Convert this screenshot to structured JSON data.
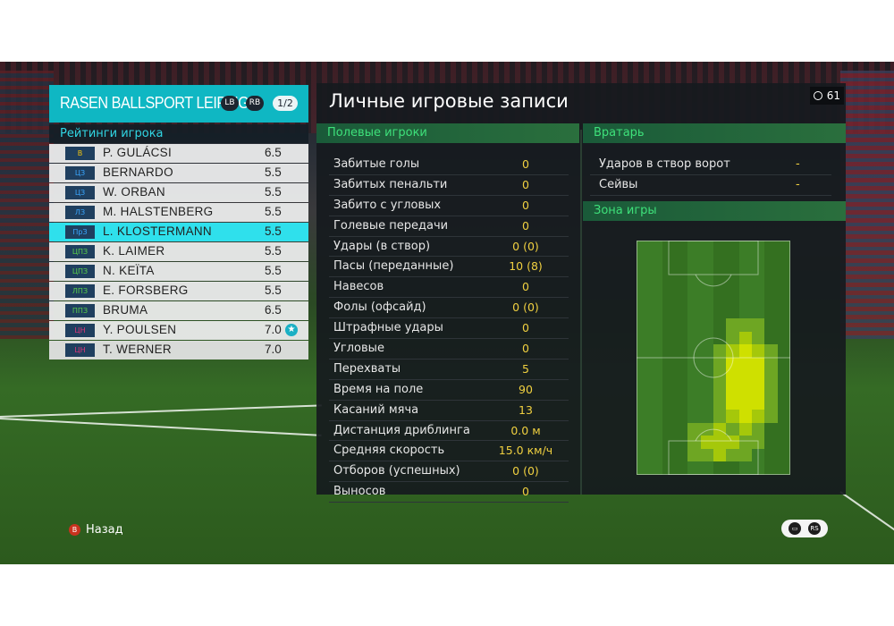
{
  "team": {
    "name": "RASEN BALLSPORT LEIPZIG",
    "lb": "LB",
    "rb": "RB",
    "page": "1/2"
  },
  "ratings_title": "Рейтинги игрока",
  "players": [
    {
      "pos": "В",
      "pos_color": "#f1c40f",
      "name": "P. GULÁCSI",
      "rating": "6.5"
    },
    {
      "pos": "ЦЗ",
      "pos_color": "#3aa7ff",
      "name": "BERNARDO",
      "rating": "5.5"
    },
    {
      "pos": "ЦЗ",
      "pos_color": "#3aa7ff",
      "name": "W. ORBAN",
      "rating": "5.5"
    },
    {
      "pos": "ЛЗ",
      "pos_color": "#3aa7ff",
      "name": "M. HALSTENBERG",
      "rating": "5.5"
    },
    {
      "pos": "ПрЗ",
      "pos_color": "#3aa7ff",
      "name": "L. KLOSTERMANN",
      "rating": "5.5"
    },
    {
      "pos": "ЦПЗ",
      "pos_color": "#5ad14a",
      "name": "K. LAIMER",
      "rating": "5.5"
    },
    {
      "pos": "ЦПЗ",
      "pos_color": "#5ad14a",
      "name": "N. KEÏTA",
      "rating": "5.5"
    },
    {
      "pos": "ЛПЗ",
      "pos_color": "#5ad14a",
      "name": "E. FORSBERG",
      "rating": "5.5"
    },
    {
      "pos": "ППЗ",
      "pos_color": "#5ad14a",
      "name": "BRUMA",
      "rating": "6.5"
    },
    {
      "pos": "ЦН",
      "pos_color": "#e0357a",
      "name": "Y. POULSEN",
      "rating": "7.0"
    },
    {
      "pos": "ЦН",
      "pos_color": "#e0357a",
      "name": "T. WERNER",
      "rating": "7.0"
    }
  ],
  "main_title": "Личные игровые записи",
  "timer": "61",
  "field_players_title": "Полевые игроки",
  "goalkeeper_title": "Вратарь",
  "zone_title": "Зона игры",
  "stats": [
    {
      "label": "Забитые голы",
      "value": "0"
    },
    {
      "label": "Забитых пенальти",
      "value": "0"
    },
    {
      "label": "Забито с угловых",
      "value": "0"
    },
    {
      "label": "Голевые передачи",
      "value": "0"
    },
    {
      "label": "Удары (в створ)",
      "value": "0 (0)"
    },
    {
      "label": "Пасы (переданные)",
      "value": "10 (8)"
    },
    {
      "label": "Навесов",
      "value": "0"
    },
    {
      "label": "Фолы (офсайд)",
      "value": "0 (0)"
    },
    {
      "label": "Штрафные удары",
      "value": "0"
    },
    {
      "label": "Угловые",
      "value": "0"
    },
    {
      "label": "Перехваты",
      "value": "5"
    },
    {
      "label": "Время на поле",
      "value": "90"
    },
    {
      "label": "Касаний мяча",
      "value": "13"
    },
    {
      "label": "Дистанция дриблинга",
      "value": "0.0 м"
    },
    {
      "label": "Средняя скорость",
      "value": "15.0 км/ч"
    },
    {
      "label": "Отборов (успешных)",
      "value": "0 (0)"
    },
    {
      "label": "Выносов",
      "value": "0"
    }
  ],
  "gk_stats": [
    {
      "label": "Ударов в створ ворот",
      "value": "-"
    },
    {
      "label": "Сейвы",
      "value": "-"
    }
  ],
  "back_label": "Назад",
  "back_key": "B",
  "colors": {
    "accent": "#0fb7c3",
    "value": "#f0d040",
    "section_text": "#3ee07a"
  }
}
